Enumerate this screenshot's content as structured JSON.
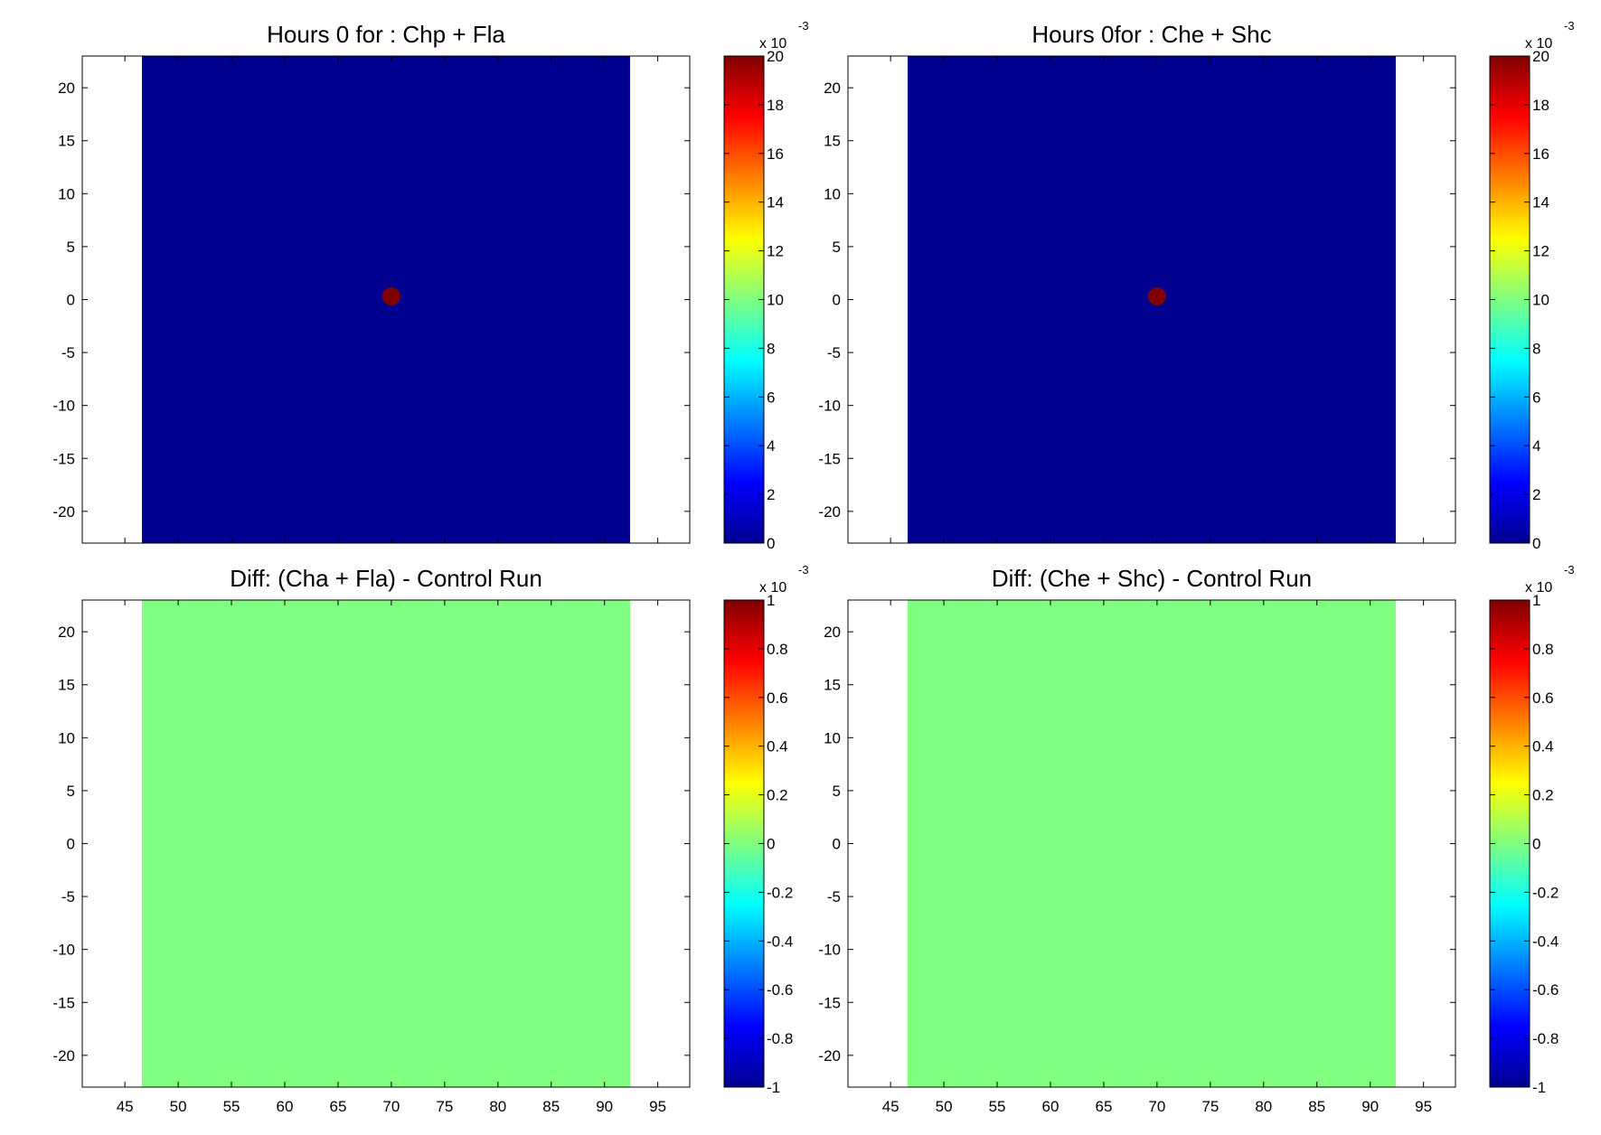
{
  "chart_data": [
    {
      "type": "heatmap",
      "panel": "top-left",
      "title": "Hours 0 for : Chp + Fla",
      "xlabel": "",
      "ylabel": "",
      "xlim": [
        41,
        98
      ],
      "ylim": [
        -23,
        23
      ],
      "x_ticks": [
        45,
        50,
        55,
        60,
        65,
        70,
        75,
        80,
        85,
        90,
        95
      ],
      "y_ticks": [
        -20,
        -15,
        -10,
        -5,
        0,
        5,
        10,
        15,
        20
      ],
      "show_x_tick_labels": false,
      "data_extent_x": [
        46.6,
        92.4
      ],
      "background_value": 0,
      "hotspot": {
        "x": 70,
        "y": 0.3,
        "value": 0.02
      },
      "colorbar": {
        "min": 0,
        "max": 20,
        "ticks": [
          "0",
          "2",
          "4",
          "6",
          "8",
          "10",
          "12",
          "14",
          "16",
          "18",
          "20"
        ],
        "multiplier": "x 10",
        "exponent": "-3"
      },
      "colormap": "jet"
    },
    {
      "type": "heatmap",
      "panel": "top-right",
      "title": "Hours 0for : Che + Shc",
      "xlabel": "",
      "ylabel": "",
      "xlim": [
        41,
        98
      ],
      "ylim": [
        -23,
        23
      ],
      "x_ticks": [
        45,
        50,
        55,
        60,
        65,
        70,
        75,
        80,
        85,
        90,
        95
      ],
      "y_ticks": [
        -20,
        -15,
        -10,
        -5,
        0,
        5,
        10,
        15,
        20
      ],
      "show_x_tick_labels": false,
      "data_extent_x": [
        46.6,
        92.4
      ],
      "background_value": 0,
      "hotspot": {
        "x": 70,
        "y": 0.3,
        "value": 0.02
      },
      "colorbar": {
        "min": 0,
        "max": 20,
        "ticks": [
          "0",
          "2",
          "4",
          "6",
          "8",
          "10",
          "12",
          "14",
          "16",
          "18",
          "20"
        ],
        "multiplier": "x 10",
        "exponent": "-3"
      },
      "colormap": "jet"
    },
    {
      "type": "heatmap",
      "panel": "bottom-left",
      "title": "Diff: (Cha + Fla) - Control Run",
      "xlabel": "",
      "ylabel": "",
      "xlim": [
        41,
        98
      ],
      "ylim": [
        -23,
        23
      ],
      "x_ticks": [
        45,
        50,
        55,
        60,
        65,
        70,
        75,
        80,
        85,
        90,
        95
      ],
      "y_ticks": [
        -20,
        -15,
        -10,
        -5,
        0,
        5,
        10,
        15,
        20
      ],
      "show_x_tick_labels": true,
      "data_extent_x": [
        46.6,
        92.4
      ],
      "background_value": 0,
      "hotspot": null,
      "colorbar": {
        "min": -1,
        "max": 1,
        "ticks": [
          "-1",
          "-0.8",
          "-0.6",
          "-0.4",
          "-0.2",
          "0",
          "0.2",
          "0.4",
          "0.6",
          "0.8",
          "1"
        ],
        "multiplier": "x 10",
        "exponent": "-3"
      },
      "colormap": "jet"
    },
    {
      "type": "heatmap",
      "panel": "bottom-right",
      "title": "Diff: (Che + Shc) - Control Run",
      "xlabel": "",
      "ylabel": "",
      "xlim": [
        41,
        98
      ],
      "ylim": [
        -23,
        23
      ],
      "x_ticks": [
        45,
        50,
        55,
        60,
        65,
        70,
        75,
        80,
        85,
        90,
        95
      ],
      "y_ticks": [
        -20,
        -15,
        -10,
        -5,
        0,
        5,
        10,
        15,
        20
      ],
      "show_x_tick_labels": true,
      "data_extent_x": [
        46.6,
        92.4
      ],
      "background_value": 0,
      "hotspot": null,
      "colorbar": {
        "min": -1,
        "max": 1,
        "ticks": [
          "-1",
          "-0.8",
          "-0.6",
          "-0.4",
          "-0.2",
          "0",
          "0.2",
          "0.4",
          "0.6",
          "0.8",
          "1"
        ],
        "multiplier": "x 10",
        "exponent": "-3"
      },
      "colormap": "jet"
    }
  ]
}
